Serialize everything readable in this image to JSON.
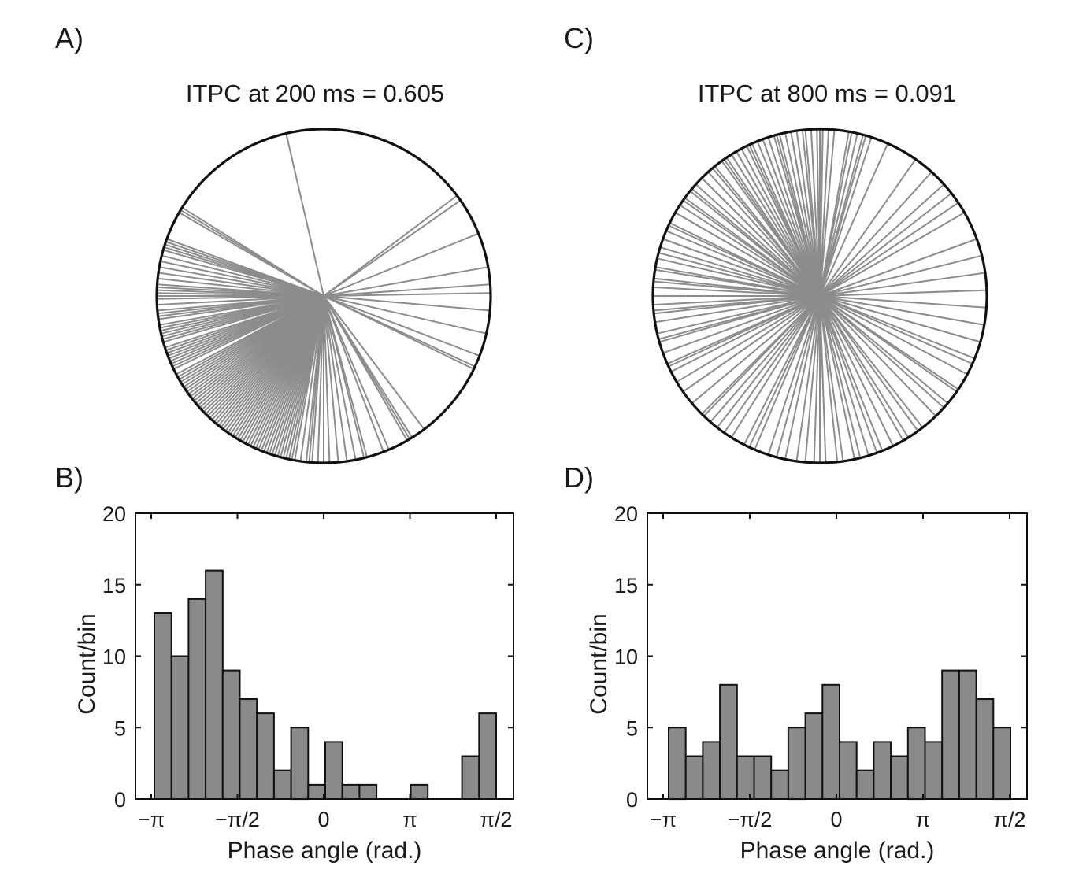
{
  "panels": {
    "a": {
      "letter": "A)"
    },
    "b": {
      "letter": "B)"
    },
    "c": {
      "letter": "C)"
    },
    "d": {
      "letter": "D)"
    }
  },
  "chart_data": [
    {
      "type": "polar-lines",
      "panel": "A)",
      "title": "ITPC at 200 ms = 0.605",
      "angles_deg": [
        103,
        148,
        149,
        150,
        160,
        161,
        162,
        163,
        164,
        166,
        168,
        170,
        172,
        174,
        176,
        177,
        178,
        179,
        180,
        181,
        183,
        185,
        186,
        187,
        188,
        190,
        191,
        192,
        193,
        194,
        195,
        196,
        198,
        199,
        200,
        201,
        202,
        203,
        204,
        205,
        206,
        208,
        209,
        210,
        211,
        212,
        213,
        214,
        215,
        216,
        217,
        218,
        219,
        220,
        221,
        222,
        223,
        224,
        225,
        226,
        227,
        228,
        229,
        230,
        231,
        232,
        233,
        234,
        235,
        236,
        237,
        238,
        239,
        240,
        241,
        242,
        243,
        244,
        245,
        246,
        247,
        248,
        249,
        250,
        251,
        252,
        253,
        254,
        255,
        256,
        257,
        258,
        259,
        260,
        262,
        264,
        265,
        266,
        268,
        270,
        272,
        275,
        278,
        281,
        284,
        285,
        291,
        293,
        300,
        301,
        302,
        307,
        334,
        335,
        339,
        347,
        355,
        1,
        4,
        10,
        22,
        35,
        37
      ]
    },
    {
      "type": "polar-lines",
      "panel": "C)",
      "title": "ITPC at 800 ms = 0.091",
      "angles_deg": [
        85,
        80,
        79,
        77,
        75,
        74,
        72,
        66,
        55,
        48,
        42,
        38,
        34,
        30,
        20,
        14,
        8,
        2,
        356,
        350,
        344,
        336,
        325,
        318,
        306,
        300,
        292,
        287,
        282,
        276,
        270,
        265,
        258,
        252,
        247,
        243,
        238,
        232,
        229,
        226,
        220,
        215,
        211,
        207,
        204,
        200,
        196,
        193,
        189,
        186,
        183,
        180,
        177,
        174,
        171,
        167,
        163,
        160,
        157,
        154,
        150,
        147,
        144,
        141,
        138,
        135,
        132,
        129,
        126,
        124,
        122,
        120,
        118,
        116,
        114,
        112,
        110,
        108,
        106,
        104,
        102,
        100,
        98,
        96,
        93,
        91,
        89,
        87,
        90,
        95,
        100,
        105,
        110,
        115,
        120,
        125,
        130,
        135,
        140,
        145,
        150,
        155,
        160,
        165,
        170,
        175,
        185,
        195,
        205,
        215,
        225,
        235,
        245,
        255,
        262,
        268,
        272,
        278,
        284,
        290,
        296,
        302,
        308,
        314,
        320,
        326,
        332,
        338,
        344,
        350
      ]
    },
    {
      "type": "bar",
      "panel": "B)",
      "xlabel": "Phase angle (rad.)",
      "ylabel": "Count/bin",
      "ylim": [
        0,
        20
      ],
      "yticks": [
        "0",
        "5",
        "10",
        "15",
        "20"
      ],
      "xticks": [
        "−π",
        "−π/2",
        "0",
        "π",
        "π/2"
      ],
      "values": [
        13,
        10,
        14,
        16,
        9,
        7,
        6,
        2,
        5,
        1,
        4,
        1,
        1,
        0,
        0,
        1,
        0,
        0,
        3,
        6
      ]
    },
    {
      "type": "bar",
      "panel": "D)",
      "xlabel": "Phase angle (rad.)",
      "ylabel": "Count/bin",
      "ylim": [
        0,
        20
      ],
      "yticks": [
        "0",
        "5",
        "10",
        "15",
        "20"
      ],
      "xticks": [
        "−π",
        "−π/2",
        "0",
        "π",
        "π/2"
      ],
      "values": [
        5,
        3,
        4,
        8,
        3,
        3,
        2,
        5,
        6,
        8,
        4,
        2,
        4,
        3,
        5,
        4,
        9,
        9,
        7,
        5
      ]
    }
  ]
}
